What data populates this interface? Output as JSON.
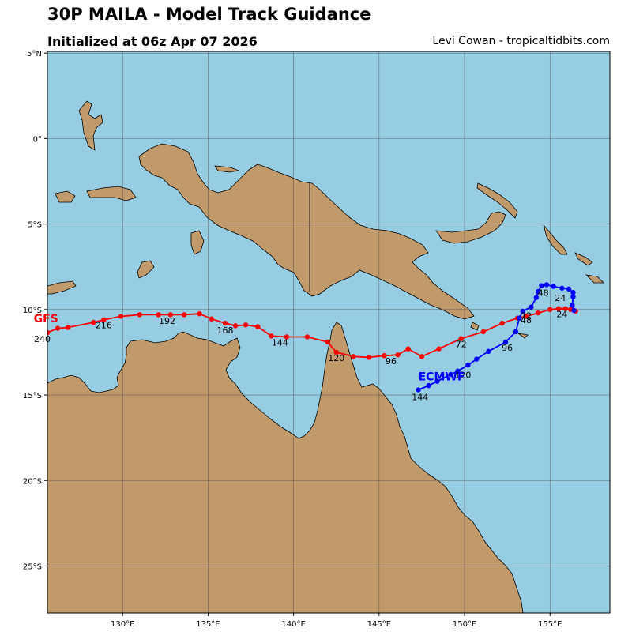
{
  "header": {
    "title": "30P MAILA - Model Track Guidance",
    "subtitle": "Initialized at 06z Apr 07 2026",
    "credit": "Levi Cowan - tropicaltidbits.com"
  },
  "colors": {
    "ocean": "#96cde3",
    "land": "#c19a6b",
    "gfs": "#ff0000",
    "ecmwf": "#0000ff",
    "grid": "#444444"
  },
  "chart_data": {
    "type": "map",
    "lon_range": [
      125.6,
      158.5
    ],
    "lat_range": [
      -27.75,
      5.1
    ],
    "x_ticks": [
      {
        "value": 130,
        "label": "130°E"
      },
      {
        "value": 135,
        "label": "135°E"
      },
      {
        "value": 140,
        "label": "140°E"
      },
      {
        "value": 145,
        "label": "145°E"
      },
      {
        "value": 150,
        "label": "150°E"
      },
      {
        "value": 155,
        "label": "155°E"
      }
    ],
    "y_ticks": [
      {
        "value": 5,
        "label": "5°N"
      },
      {
        "value": 0,
        "label": "0°"
      },
      {
        "value": -5,
        "label": "5°S"
      },
      {
        "value": -10,
        "label": "10°S"
      },
      {
        "value": -15,
        "label": "15°S"
      },
      {
        "value": -20,
        "label": "20°S"
      },
      {
        "value": -25,
        "label": "25°S"
      }
    ],
    "grid": true,
    "series": [
      {
        "name": "GFS",
        "color": "#ff0000",
        "points": [
          [
            156.5,
            -10.1
          ],
          [
            156.2,
            -10.0
          ],
          [
            155.9,
            -9.95
          ],
          [
            155.5,
            -9.95
          ],
          [
            155.0,
            -10.0
          ],
          [
            154.3,
            -10.2
          ],
          [
            153.6,
            -10.4
          ],
          [
            153.1,
            -10.5
          ],
          [
            152.2,
            -10.8
          ],
          [
            151.1,
            -11.3
          ],
          [
            149.8,
            -11.7
          ],
          [
            148.5,
            -12.3
          ],
          [
            147.5,
            -12.75
          ],
          [
            146.7,
            -12.3
          ],
          [
            146.1,
            -12.65
          ],
          [
            145.3,
            -12.7
          ],
          [
            144.4,
            -12.8
          ],
          [
            143.5,
            -12.75
          ],
          [
            142.5,
            -12.5
          ],
          [
            142.0,
            -11.9
          ],
          [
            140.8,
            -11.6
          ],
          [
            139.6,
            -11.6
          ],
          [
            138.7,
            -11.55
          ],
          [
            137.9,
            -11.0
          ],
          [
            137.2,
            -10.9
          ],
          [
            136.6,
            -10.95
          ],
          [
            136.0,
            -10.8
          ],
          [
            135.2,
            -10.55
          ],
          [
            134.5,
            -10.25
          ],
          [
            133.6,
            -10.3
          ],
          [
            132.8,
            -10.3
          ],
          [
            132.1,
            -10.3
          ],
          [
            131.0,
            -10.3
          ],
          [
            129.9,
            -10.4
          ],
          [
            128.9,
            -10.6
          ],
          [
            128.3,
            -10.75
          ],
          [
            126.8,
            -11.05
          ],
          [
            126.2,
            -11.1
          ],
          [
            125.6,
            -11.35
          ]
        ],
        "labels": [
          {
            "text": "24",
            "lon": 155.7,
            "lat": -10.45
          },
          {
            "text": "48",
            "lon": 153.6,
            "lat": -10.8
          },
          {
            "text": "72",
            "lon": 149.8,
            "lat": -12.2
          },
          {
            "text": "96",
            "lon": 145.7,
            "lat": -13.2
          },
          {
            "text": "120",
            "lon": 142.5,
            "lat": -13.0
          },
          {
            "text": "144",
            "lon": 139.2,
            "lat": -12.1
          },
          {
            "text": "168",
            "lon": 136.0,
            "lat": -11.4
          },
          {
            "text": "192",
            "lon": 132.6,
            "lat": -10.85
          },
          {
            "text": "216",
            "lon": 128.9,
            "lat": -11.1
          },
          {
            "text": "240",
            "lon": 125.3,
            "lat": -11.9
          }
        ],
        "name_pos": {
          "lon": 124.8,
          "lat": -10.75
        }
      },
      {
        "name": "ECMWF",
        "color": "#0000ff",
        "points": [
          [
            156.4,
            -10.05
          ],
          [
            156.3,
            -9.75
          ],
          [
            156.35,
            -9.25
          ],
          [
            156.35,
            -9.0
          ],
          [
            156.1,
            -8.8
          ],
          [
            155.7,
            -8.75
          ],
          [
            155.2,
            -8.65
          ],
          [
            154.8,
            -8.55
          ],
          [
            154.5,
            -8.6
          ],
          [
            154.3,
            -8.95
          ],
          [
            154.2,
            -9.3
          ],
          [
            153.9,
            -9.85
          ],
          [
            153.4,
            -10.1
          ],
          [
            153.2,
            -10.5
          ],
          [
            153.0,
            -11.3
          ],
          [
            152.4,
            -11.9
          ],
          [
            151.4,
            -12.45
          ],
          [
            150.7,
            -12.9
          ],
          [
            150.2,
            -13.25
          ],
          [
            149.6,
            -13.6
          ],
          [
            149.2,
            -13.8
          ],
          [
            148.4,
            -14.2
          ],
          [
            147.9,
            -14.45
          ],
          [
            147.3,
            -14.7
          ]
        ],
        "labels": [
          {
            "text": "24",
            "lon": 155.6,
            "lat": -9.5
          },
          {
            "text": "48",
            "lon": 154.6,
            "lat": -9.2
          },
          {
            "text": "72",
            "lon": 153.6,
            "lat": -10.55
          },
          {
            "text": "96",
            "lon": 152.5,
            "lat": -12.4
          },
          {
            "text": "120",
            "lon": 149.9,
            "lat": -14.0
          },
          {
            "text": "144",
            "lon": 147.4,
            "lat": -15.3
          }
        ],
        "name_pos": {
          "lon": 147.3,
          "lat": -14.15
        }
      }
    ]
  }
}
